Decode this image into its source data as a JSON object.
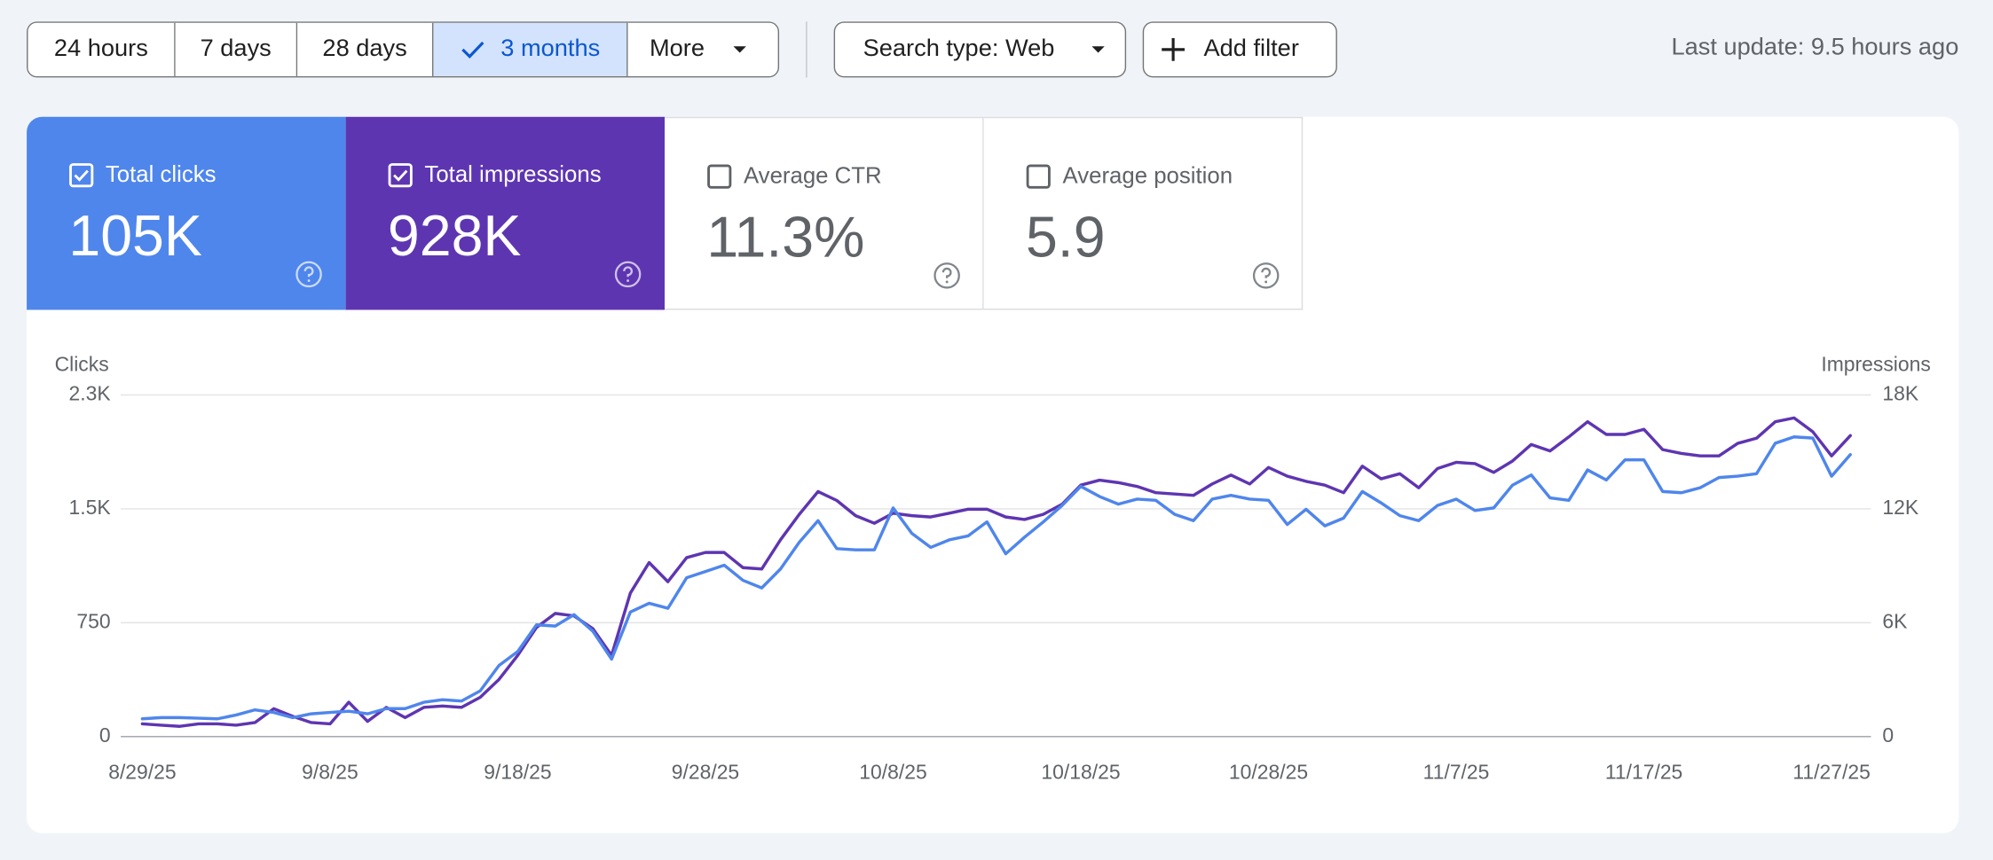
{
  "toolbar": {
    "date_ranges": [
      {
        "label": "24 hours"
      },
      {
        "label": "7 days"
      },
      {
        "label": "28 days"
      },
      {
        "label": "3 months",
        "selected": true
      },
      {
        "label": "More",
        "menu": true
      }
    ],
    "filters": [
      {
        "label": "Search type: Web",
        "menu": true
      },
      {
        "label": "Add filter",
        "add": true
      }
    ],
    "last_update": "Last update: 9.5 hours ago"
  },
  "metrics": [
    {
      "label": "Total clicks",
      "value": "105K",
      "checked": true,
      "color": "#4f86ec"
    },
    {
      "label": "Total impressions",
      "value": "928K",
      "checked": true,
      "color": "#5e35b1"
    },
    {
      "label": "Average CTR",
      "value": "11.3%",
      "checked": false
    },
    {
      "label": "Average position",
      "value": "5.9",
      "checked": false
    }
  ],
  "chart_data": {
    "type": "line",
    "ylabel": "Clicks",
    "y2label": "Impressions",
    "categories": [
      "8/29/25",
      null,
      null,
      null,
      null,
      null,
      null,
      null,
      null,
      null,
      "9/8/25",
      null,
      null,
      null,
      null,
      null,
      null,
      null,
      null,
      null,
      "9/18/25",
      null,
      null,
      null,
      null,
      null,
      null,
      null,
      null,
      null,
      "9/28/25",
      null,
      null,
      null,
      null,
      null,
      null,
      null,
      null,
      null,
      "10/8/25",
      null,
      null,
      null,
      null,
      null,
      null,
      null,
      null,
      null,
      "10/18/25",
      null,
      null,
      null,
      null,
      null,
      null,
      null,
      null,
      null,
      "10/28/25",
      null,
      null,
      null,
      null,
      null,
      null,
      null,
      null,
      null,
      "11/7/25",
      null,
      null,
      null,
      null,
      null,
      null,
      null,
      null,
      null,
      "11/17/25",
      null,
      null,
      null,
      null,
      null,
      null,
      null,
      null,
      null,
      "11/27/25",
      null
    ],
    "series": [
      {
        "name": "Clicks",
        "color": "#4f86ec",
        "values": [
          117,
          125,
          125,
          121,
          117,
          142,
          176,
          159,
          125,
          150,
          159,
          167,
          150,
          184,
          184,
          226,
          243,
          234,
          301,
          468,
          560,
          736,
          728,
          803,
          694,
          510,
          820,
          878,
          845,
          1046,
          1087,
          1129,
          1029,
          979,
          1104,
          1280,
          1422,
          1238,
          1230,
          1230,
          1506,
          1338,
          1246,
          1296,
          1322,
          1414,
          1204,
          1313,
          1414,
          1522,
          1648,
          1581,
          1531,
          1564,
          1556,
          1464,
          1422,
          1564,
          1589,
          1564,
          1556,
          1397,
          1497,
          1388,
          1439,
          1614,
          1539,
          1455,
          1422,
          1522,
          1564,
          1489,
          1506,
          1656,
          1723,
          1572,
          1556,
          1756,
          1690,
          1823,
          1823,
          1614,
          1606,
          1639,
          1706,
          1715,
          1731,
          1932,
          1974,
          1966,
          1715,
          1857
        ]
      },
      {
        "name": "Impressions",
        "color": "#5e35b1",
        "axis": "y2",
        "values": [
          670,
          600,
          540,
          670,
          670,
          600,
          740,
          1470,
          1070,
          740,
          670,
          1810,
          800,
          1540,
          1000,
          1540,
          1610,
          1540,
          2070,
          3010,
          4280,
          5750,
          6490,
          6360,
          5690,
          4280,
          7560,
          9170,
          8160,
          9430,
          9700,
          9700,
          8900,
          8830,
          10370,
          11710,
          12910,
          12440,
          11640,
          11240,
          11770,
          11640,
          11570,
          11770,
          11980,
          11980,
          11570,
          11440,
          11710,
          12240,
          13250,
          13510,
          13380,
          13180,
          12850,
          12780,
          12710,
          13310,
          13780,
          13310,
          14180,
          13720,
          13450,
          13250,
          12850,
          14250,
          13580,
          13850,
          13110,
          14120,
          14450,
          14380,
          13920,
          14520,
          15390,
          15050,
          15790,
          16590,
          15920,
          15920,
          16190,
          15120,
          14920,
          14790,
          14790,
          15450,
          15720,
          16590,
          16790,
          16060,
          14790,
          15860
        ]
      }
    ],
    "ylim": [
      0,
      2250
    ],
    "yticks": [
      0,
      750,
      {
        "value": 1500,
        "label": "1.5K"
      },
      {
        "value": 2250,
        "label": "2.3K"
      }
    ],
    "y2lim": [
      0,
      18000
    ],
    "y2ticks": [
      0,
      {
        "value": 6000,
        "label": "6K"
      },
      {
        "value": 12000,
        "label": "12K"
      },
      {
        "value": 18000,
        "label": "18K"
      }
    ],
    "grid": true
  }
}
